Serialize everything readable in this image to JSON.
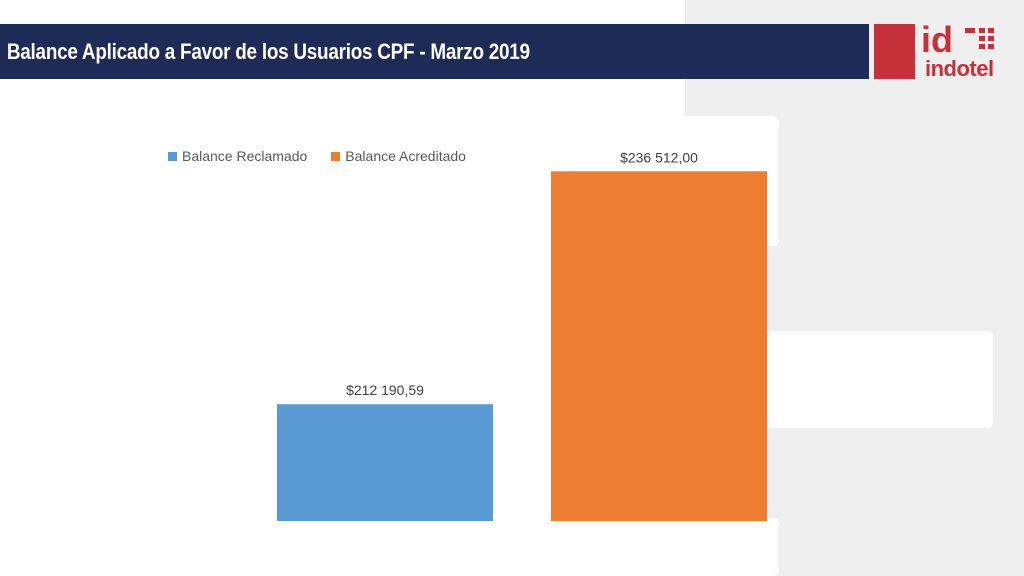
{
  "title": "Balance Aplicado a Favor de los Usuarios CPF - Marzo 2019",
  "logo": {
    "wordmark": "id",
    "name": "indotel"
  },
  "colors": {
    "header": "#1d2b56",
    "brand_red": "#c6303a",
    "series1": "#5b9bd5",
    "series2": "#ed7d31"
  },
  "legend": [
    {
      "label": "Balance Reclamado",
      "color": "#5b9bd5"
    },
    {
      "label": "Balance Acreditado",
      "color": "#ed7d31"
    }
  ],
  "chart_data": {
    "type": "bar",
    "categories": [
      "Balance Reclamado",
      "Balance Acreditado"
    ],
    "values": [
      212190.59,
      236512.0
    ],
    "data_labels": [
      "$212 190,59",
      "$236 512,00"
    ],
    "colors": [
      "#5b9bd5",
      "#ed7d31"
    ],
    "title": "",
    "xlabel": "",
    "ylabel": "",
    "ylim": [
      200000,
      238000
    ],
    "grid": false,
    "legend_position": "top-left"
  }
}
